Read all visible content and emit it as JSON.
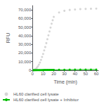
{
  "chart_data": {
    "type": "line",
    "xlabel": "Time (min)",
    "ylabel": "RFU",
    "x": [
      1,
      2,
      3,
      4,
      5,
      6,
      7,
      8,
      9,
      10,
      11,
      12,
      13,
      14,
      15,
      16,
      17,
      18,
      19,
      20,
      25,
      30,
      35,
      40,
      45,
      50,
      55,
      60
    ],
    "series": [
      {
        "name": "HL60 clarified cell lysate",
        "type": "scatter",
        "color": "#cccccc",
        "marker": "circle",
        "line_style": "none",
        "values": [
          200,
          700,
          1500,
          2800,
          4500,
          6500,
          9000,
          12000,
          15500,
          19000,
          23000,
          27000,
          31500,
          36000,
          40500,
          45000,
          49500,
          54000,
          58000,
          62000,
          67000,
          69000,
          70000,
          70500,
          71000,
          71200,
          71400,
          71500
        ]
      },
      {
        "name": "HL60 clarified cell lysate + Inhibitor",
        "type": "line",
        "color": "#00bb00",
        "marker": "circle",
        "line_style": "solid",
        "values": [
          100,
          120,
          140,
          160,
          180,
          200,
          220,
          240,
          260,
          280,
          300,
          320,
          340,
          360,
          380,
          400,
          420,
          440,
          460,
          480,
          550,
          620,
          680,
          730,
          770,
          800,
          820,
          840
        ]
      }
    ],
    "xlim": [
      0,
      62
    ],
    "xticks": [
      0,
      10,
      20,
      30,
      40,
      50,
      60
    ],
    "ylim": [
      0,
      75000
    ],
    "yticks": [
      0,
      {
        "value": 10000,
        "label": "10,000"
      },
      {
        "value": 20000,
        "label": "20,000"
      },
      {
        "value": 30000,
        "label": "30,000"
      },
      {
        "value": 40000,
        "label": "40,000"
      },
      {
        "value": 50000,
        "label": "50,000"
      },
      {
        "value": 60000,
        "label": "60,000"
      },
      {
        "value": 70000,
        "label": "70,000"
      }
    ],
    "grid": false,
    "legend": "bottom"
  }
}
